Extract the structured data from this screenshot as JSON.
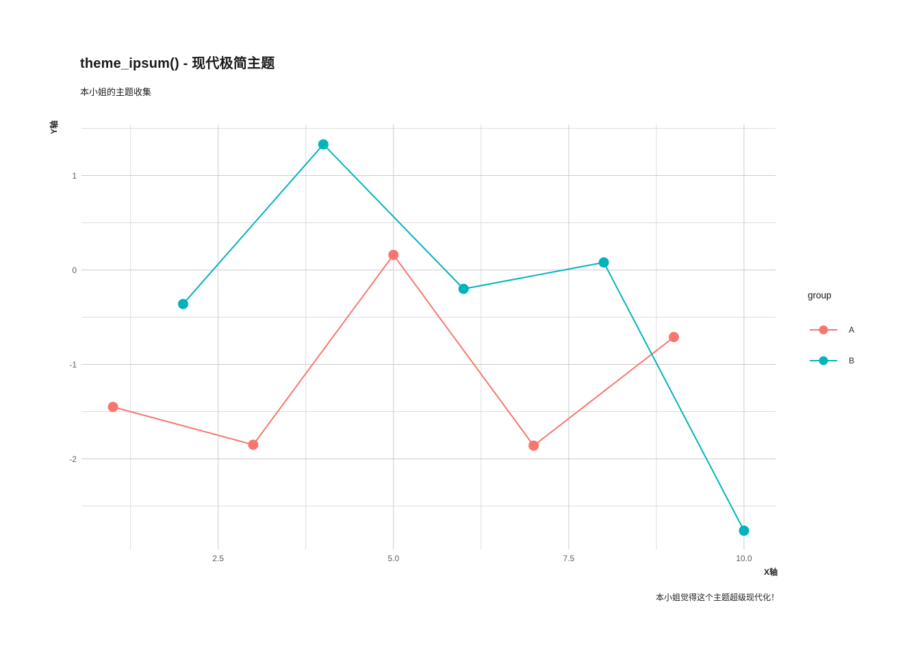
{
  "chart_data": {
    "type": "line",
    "title": "theme_ipsum() - 现代极简主题",
    "subtitle": "本小姐的主题收集",
    "caption": "本小姐觉得这个主题超级现代化！",
    "xlabel": "X轴",
    "ylabel": "Y轴",
    "legend_title": "group",
    "legend_position": "right",
    "grid": true,
    "xlim": [
      0.55,
      10.45
    ],
    "ylim": [
      -2.96,
      1.54
    ],
    "x_major_ticks": [
      {
        "value": 2.5,
        "label": "2.5"
      },
      {
        "value": 5.0,
        "label": "5.0"
      },
      {
        "value": 7.5,
        "label": "7.5"
      },
      {
        "value": 10.0,
        "label": "10.0"
      }
    ],
    "y_major_ticks": [
      {
        "value": 1,
        "label": "1"
      },
      {
        "value": 0,
        "label": "0"
      },
      {
        "value": -1,
        "label": "-1"
      },
      {
        "value": -2,
        "label": "-2"
      }
    ],
    "x_minor": [
      1.25,
      3.75,
      6.25,
      8.75
    ],
    "y_minor": [
      1.5,
      0.5,
      -0.5,
      -1.5,
      -2.5
    ],
    "grid_major_color": "#cbcbcb",
    "grid_minor_color": "#dcdcdc",
    "point_radius": 7.5,
    "line_width": 2,
    "series": [
      {
        "name": "A",
        "color": "#f8766d",
        "x": [
          1,
          3,
          5,
          7,
          9
        ],
        "y": [
          -1.45,
          -1.85,
          0.16,
          -1.86,
          -0.71
        ]
      },
      {
        "name": "B",
        "color": "#00b3bc",
        "x": [
          2,
          4,
          6,
          8,
          10
        ],
        "y": [
          -0.36,
          1.33,
          -0.2,
          0.08,
          -2.76
        ]
      }
    ]
  }
}
